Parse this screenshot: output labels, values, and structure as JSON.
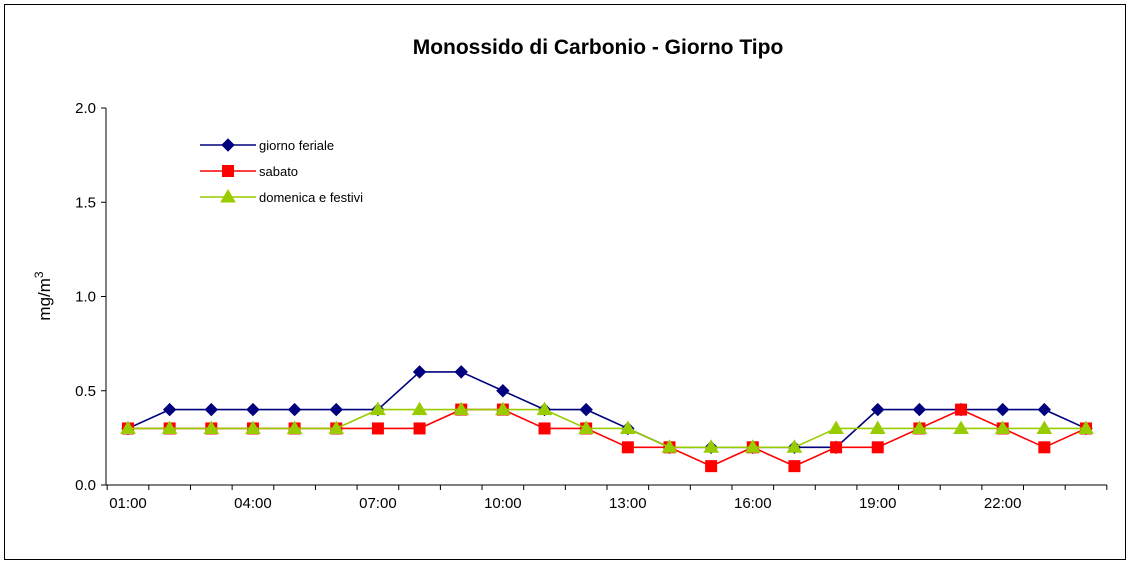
{
  "chart_data": {
    "type": "line",
    "title": "Monossido di Carbonio -  Giorno Tipo",
    "ylabel": "mg/m",
    "ylabel_superscript": "3",
    "xlabel": "",
    "ylim": [
      0.0,
      2.0
    ],
    "yticks": [
      "0.0",
      "0.5",
      "1.0",
      "1.5",
      "2.0"
    ],
    "ytick_values": [
      0.0,
      0.5,
      1.0,
      1.5,
      2.0
    ],
    "x": [
      "01:00",
      "02:00",
      "03:00",
      "04:00",
      "05:00",
      "06:00",
      "07:00",
      "08:00",
      "09:00",
      "10:00",
      "11:00",
      "12:00",
      "13:00",
      "14:00",
      "15:00",
      "16:00",
      "17:00",
      "18:00",
      "19:00",
      "20:00",
      "21:00",
      "22:00",
      "23:00",
      "24:00"
    ],
    "xtick_labels": [
      "01:00",
      "04:00",
      "07:00",
      "10:00",
      "13:00",
      "16:00",
      "19:00",
      "22:00"
    ],
    "xtick_label_indices": [
      0,
      3,
      6,
      9,
      12,
      15,
      18,
      21
    ],
    "grid": false,
    "legend_position": "top-left",
    "series": [
      {
        "name": "giorno feriale",
        "color": "#00007f",
        "marker": "diamond",
        "values": [
          0.3,
          0.4,
          0.4,
          0.4,
          0.4,
          0.4,
          0.4,
          0.6,
          0.6,
          0.5,
          0.4,
          0.4,
          0.3,
          0.2,
          0.2,
          0.2,
          0.2,
          0.2,
          0.4,
          0.4,
          0.4,
          0.4,
          0.4,
          0.3
        ]
      },
      {
        "name": "sabato",
        "color": "#ff0000",
        "marker": "square",
        "values": [
          0.3,
          0.3,
          0.3,
          0.3,
          0.3,
          0.3,
          0.3,
          0.3,
          0.4,
          0.4,
          0.3,
          0.3,
          0.2,
          0.2,
          0.1,
          0.2,
          0.1,
          0.2,
          0.2,
          0.3,
          0.4,
          0.3,
          0.2,
          0.3
        ]
      },
      {
        "name": "domenica e festivi",
        "color": "#99cc00",
        "marker": "triangle",
        "values": [
          0.3,
          0.3,
          0.3,
          0.3,
          0.3,
          0.3,
          0.4,
          0.4,
          0.4,
          0.4,
          0.4,
          0.3,
          0.3,
          0.2,
          0.2,
          0.2,
          0.2,
          0.3,
          0.3,
          0.3,
          0.3,
          0.3,
          0.3,
          0.3
        ]
      }
    ]
  }
}
